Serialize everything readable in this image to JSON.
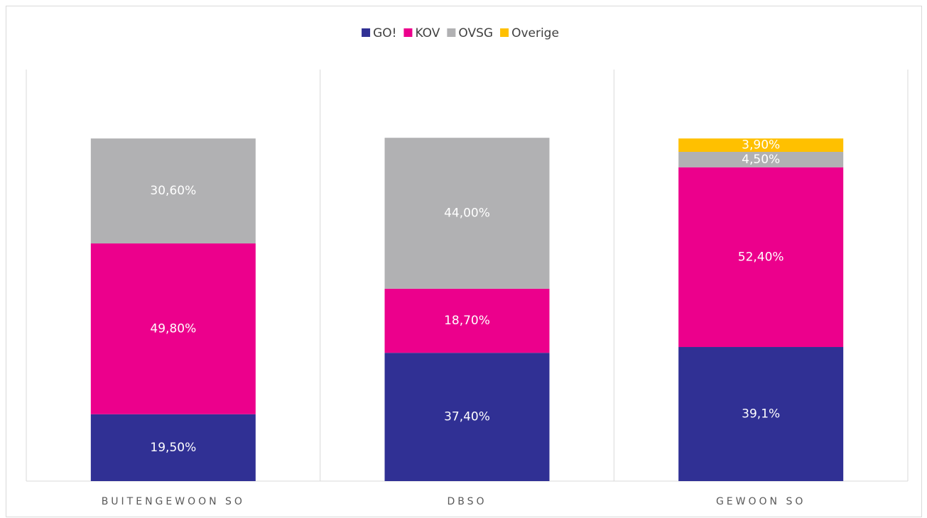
{
  "chart_data": {
    "type": "stacked_bar",
    "categories": [
      "BUITENGEWOON SO",
      "DBSO",
      "GEWOON SO"
    ],
    "series": [
      {
        "name": "GO!",
        "color": "#303094",
        "values": [
          19.5,
          37.4,
          39.1
        ],
        "value_labels": [
          "19,50%",
          "37,40%",
          "39,1%"
        ]
      },
      {
        "name": "KOV",
        "color": "#ec008c",
        "values": [
          49.8,
          18.7,
          52.4
        ],
        "value_labels": [
          "49,80%",
          "18,70%",
          "52,40%"
        ]
      },
      {
        "name": "OVSG",
        "color": "#b1b1b3",
        "values": [
          30.6,
          44.0,
          4.5
        ],
        "value_labels": [
          "30,60%",
          "44,00%",
          "4,50%"
        ]
      },
      {
        "name": "Overige",
        "color": "#ffc000",
        "values": [
          null,
          null,
          3.9
        ],
        "value_labels": [
          null,
          null,
          "3,90%"
        ]
      }
    ],
    "ylim": [
      0,
      120
    ],
    "legend": "top"
  }
}
